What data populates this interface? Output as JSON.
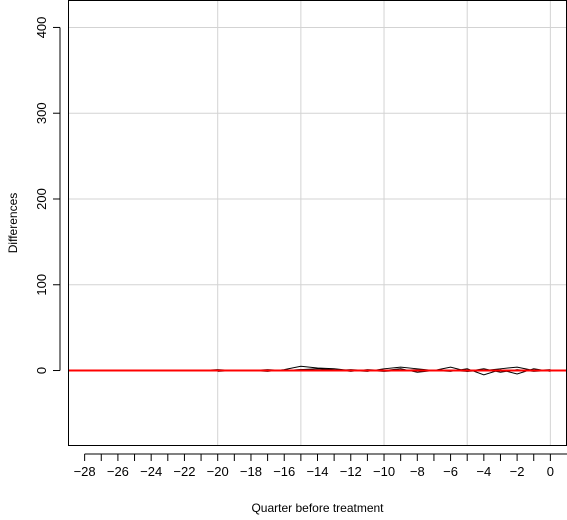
{
  "chart_data": {
    "type": "line",
    "title": "",
    "xlabel": "Quarter before treatment",
    "ylabel": "Differences",
    "xlim": [
      -29,
      1
    ],
    "ylim": [
      -88,
      432
    ],
    "x_ticks": [
      -28,
      -26,
      -24,
      -22,
      -20,
      -18,
      -16,
      -14,
      -12,
      -10,
      -8,
      -6,
      -4,
      -2,
      0
    ],
    "x_minor_ticks": [
      -27,
      -25,
      -23,
      -21,
      -19,
      -17,
      -15,
      -13,
      -11,
      -9,
      -7,
      -5,
      -3,
      -1
    ],
    "y_ticks": [
      0,
      100,
      200,
      300,
      400
    ],
    "grid": true,
    "grid_x": [
      -20,
      -15,
      -10,
      -5,
      0
    ],
    "grid_y": [
      0,
      100,
      200,
      300,
      400
    ],
    "reference_line": {
      "y": 0,
      "color": "#ff0000"
    },
    "line_color": "#000000",
    "series": [
      {
        "x": [
          -28,
          -27,
          -26,
          -25,
          -24,
          -23,
          -22,
          -21,
          -20,
          -19,
          -18,
          -17,
          -16,
          -15,
          -14,
          -13,
          -12,
          -11,
          -10,
          -9,
          -8,
          -7,
          -6,
          -5,
          -4,
          -3,
          -2,
          -1,
          0
        ],
        "values": [
          0,
          0,
          0,
          0,
          0,
          0,
          0,
          0,
          1,
          0,
          0,
          -1,
          1,
          5,
          3,
          2,
          0,
          -1,
          2,
          4,
          2,
          0,
          4,
          -1,
          0,
          2,
          4,
          0,
          1
        ]
      },
      {
        "x": [
          -20,
          -19,
          -18,
          -17,
          -16,
          -15,
          -14,
          -13,
          -12,
          -11,
          -10,
          -9,
          -8,
          -7,
          -6,
          -5,
          -4,
          -3,
          -2,
          -1,
          0
        ],
        "values": [
          -1,
          0,
          0,
          1,
          0,
          1,
          2,
          1,
          -1,
          1,
          0,
          2,
          -2,
          0,
          -1,
          2,
          -5,
          1,
          -4,
          2,
          -1
        ]
      },
      {
        "x": [
          -18,
          -17,
          -16,
          -15,
          -14,
          -13,
          -12,
          -11,
          -10,
          -9,
          -8,
          -7,
          -6,
          -5,
          -4,
          -3,
          -2,
          -1,
          0
        ],
        "values": [
          0,
          0,
          0,
          1,
          0,
          0,
          1,
          0,
          -1,
          0,
          1,
          0,
          0,
          -1,
          2,
          -2,
          1,
          -1,
          0
        ]
      }
    ]
  }
}
